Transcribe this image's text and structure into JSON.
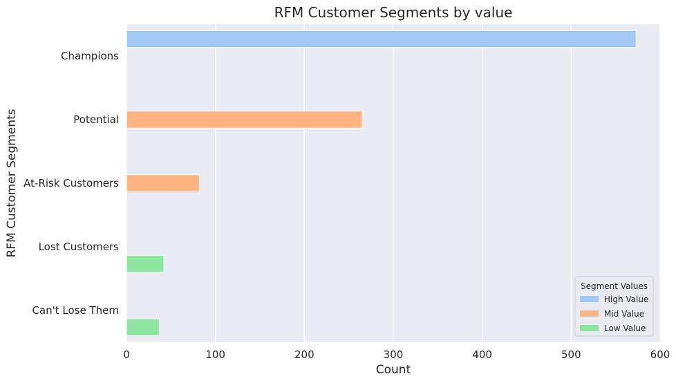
{
  "chart_data": {
    "type": "bar",
    "orientation": "horizontal",
    "title": "RFM Customer Segments by value",
    "xlabel": "Count",
    "ylabel": "RFM Customer Segments",
    "xlim": [
      0,
      600
    ],
    "xticks": [
      0,
      100,
      200,
      300,
      400,
      500,
      600
    ],
    "grid": true,
    "legend_title": "Segment Values",
    "legend_position": "bottom-right",
    "categories": [
      "Champions",
      "Potential",
      "At-Risk Customers",
      "Lost Customers",
      "Can't Lose Them"
    ],
    "series": [
      {
        "name": "High Value",
        "color": "#a1c9f4",
        "values": [
          573,
          null,
          null,
          null,
          null
        ]
      },
      {
        "name": "Mid Value",
        "color": "#ffb482",
        "values": [
          null,
          265,
          82,
          null,
          null
        ]
      },
      {
        "name": "Low Value",
        "color": "#8de5a1",
        "values": [
          null,
          null,
          null,
          42,
          37
        ]
      }
    ]
  }
}
